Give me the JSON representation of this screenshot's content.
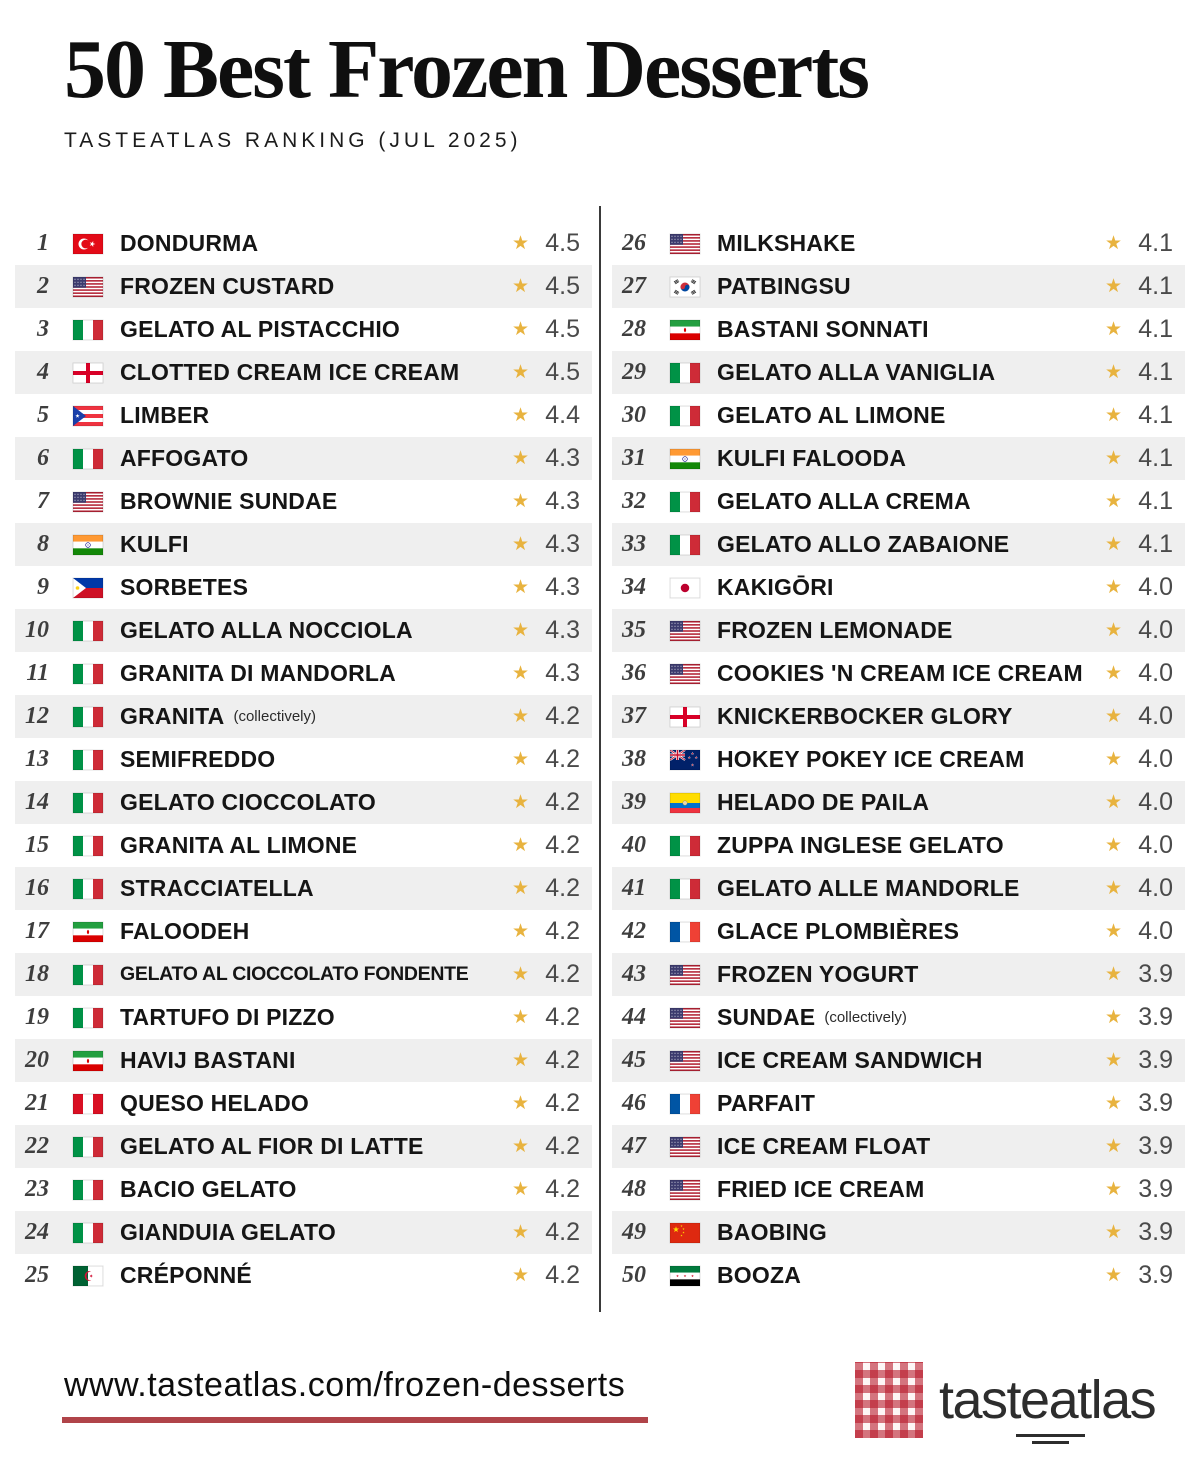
{
  "header": {
    "title": "50 Best Frozen Desserts",
    "subtitle": "TASTEATLAS RANKING (JUL 2025)"
  },
  "icons": {
    "star": "★"
  },
  "colors": {
    "star_gold": "#E8B33F",
    "alt_row": "#EFEFEF",
    "underline_red": "#B04449",
    "divider": "#3A3A3A"
  },
  "ranking": {
    "left": [
      {
        "rank": "1",
        "country": "tr",
        "country_name": "Turkey",
        "name": "DONDURMA",
        "rating": "4.5"
      },
      {
        "rank": "2",
        "country": "us",
        "country_name": "United States",
        "name": "FROZEN CUSTARD",
        "rating": "4.5"
      },
      {
        "rank": "3",
        "country": "it",
        "country_name": "Italy",
        "name": "GELATO AL PISTACCHIO",
        "rating": "4.5"
      },
      {
        "rank": "4",
        "country": "gb-eng",
        "country_name": "England",
        "name": "CLOTTED CREAM ICE CREAM",
        "rating": "4.5"
      },
      {
        "rank": "5",
        "country": "pr",
        "country_name": "Puerto Rico",
        "name": "LIMBER",
        "rating": "4.4"
      },
      {
        "rank": "6",
        "country": "it",
        "country_name": "Italy",
        "name": "AFFOGATO",
        "rating": "4.3"
      },
      {
        "rank": "7",
        "country": "us",
        "country_name": "United States",
        "name": "BROWNIE SUNDAE",
        "rating": "4.3"
      },
      {
        "rank": "8",
        "country": "in",
        "country_name": "India",
        "name": "KULFI",
        "rating": "4.3"
      },
      {
        "rank": "9",
        "country": "ph",
        "country_name": "Philippines",
        "name": "SORBETES",
        "rating": "4.3"
      },
      {
        "rank": "10",
        "country": "it",
        "country_name": "Italy",
        "name": "GELATO ALLA NOCCIOLA",
        "rating": "4.3"
      },
      {
        "rank": "11",
        "country": "it",
        "country_name": "Italy",
        "name": "GRANITA DI MANDORLA",
        "rating": "4.3"
      },
      {
        "rank": "12",
        "country": "it",
        "country_name": "Italy",
        "name": "GRANITA",
        "note": "(collectively)",
        "rating": "4.2"
      },
      {
        "rank": "13",
        "country": "it",
        "country_name": "Italy",
        "name": "SEMIFREDDO",
        "rating": "4.2"
      },
      {
        "rank": "14",
        "country": "it",
        "country_name": "Italy",
        "name": "GELATO CIOCCOLATO",
        "rating": "4.2"
      },
      {
        "rank": "15",
        "country": "it",
        "country_name": "Italy",
        "name": "GRANITA AL LIMONE",
        "rating": "4.2"
      },
      {
        "rank": "16",
        "country": "it",
        "country_name": "Italy",
        "name": "STRACCIATELLA",
        "rating": "4.2"
      },
      {
        "rank": "17",
        "country": "ir",
        "country_name": "Iran",
        "name": "FALOODEH",
        "rating": "4.2"
      },
      {
        "rank": "18",
        "country": "it",
        "country_name": "Italy",
        "name": "GELATO AL CIOCCOLATO FONDENTE",
        "rating": "4.2"
      },
      {
        "rank": "19",
        "country": "it",
        "country_name": "Italy",
        "name": "TARTUFO DI PIZZO",
        "rating": "4.2"
      },
      {
        "rank": "20",
        "country": "ir",
        "country_name": "Iran",
        "name": "HAVIJ BASTANI",
        "rating": "4.2"
      },
      {
        "rank": "21",
        "country": "pe",
        "country_name": "Peru",
        "name": "QUESO HELADO",
        "rating": "4.2"
      },
      {
        "rank": "22",
        "country": "it",
        "country_name": "Italy",
        "name": "GELATO AL FIOR DI LATTE",
        "rating": "4.2"
      },
      {
        "rank": "23",
        "country": "it",
        "country_name": "Italy",
        "name": "BACIO GELATO",
        "rating": "4.2"
      },
      {
        "rank": "24",
        "country": "it",
        "country_name": "Italy",
        "name": "GIANDUIA GELATO",
        "rating": "4.2"
      },
      {
        "rank": "25",
        "country": "dz",
        "country_name": "Algeria",
        "name": "CRÉPONNÉ",
        "rating": "4.2"
      }
    ],
    "right": [
      {
        "rank": "26",
        "country": "us",
        "country_name": "United States",
        "name": "MILKSHAKE",
        "rating": "4.1"
      },
      {
        "rank": "27",
        "country": "kr",
        "country_name": "South Korea",
        "name": "PATBINGSU",
        "rating": "4.1"
      },
      {
        "rank": "28",
        "country": "ir",
        "country_name": "Iran",
        "name": "BASTANI SONNATI",
        "rating": "4.1"
      },
      {
        "rank": "29",
        "country": "it",
        "country_name": "Italy",
        "name": "GELATO ALLA VANIGLIA",
        "rating": "4.1"
      },
      {
        "rank": "30",
        "country": "it",
        "country_name": "Italy",
        "name": "GELATO AL LIMONE",
        "rating": "4.1"
      },
      {
        "rank": "31",
        "country": "in",
        "country_name": "India",
        "name": "KULFI FALOODA",
        "rating": "4.1"
      },
      {
        "rank": "32",
        "country": "it",
        "country_name": "Italy",
        "name": "GELATO ALLA CREMA",
        "rating": "4.1"
      },
      {
        "rank": "33",
        "country": "it",
        "country_name": "Italy",
        "name": "GELATO ALLO ZABAIONE",
        "rating": "4.1"
      },
      {
        "rank": "34",
        "country": "jp",
        "country_name": "Japan",
        "name": "KAKIGŌRI",
        "rating": "4.0"
      },
      {
        "rank": "35",
        "country": "us",
        "country_name": "United States",
        "name": "FROZEN LEMONADE",
        "rating": "4.0"
      },
      {
        "rank": "36",
        "country": "us",
        "country_name": "United States",
        "name": "COOKIES 'N CREAM ICE CREAM",
        "rating": "4.0"
      },
      {
        "rank": "37",
        "country": "gb-eng",
        "country_name": "England",
        "name": "KNICKERBOCKER GLORY",
        "rating": "4.0"
      },
      {
        "rank": "38",
        "country": "nz",
        "country_name": "New Zealand",
        "name": "HOKEY POKEY ICE CREAM",
        "rating": "4.0"
      },
      {
        "rank": "39",
        "country": "ec",
        "country_name": "Ecuador",
        "name": "HELADO DE PAILA",
        "rating": "4.0"
      },
      {
        "rank": "40",
        "country": "it",
        "country_name": "Italy",
        "name": "ZUPPA INGLESE GELATO",
        "rating": "4.0"
      },
      {
        "rank": "41",
        "country": "it",
        "country_name": "Italy",
        "name": "GELATO ALLE MANDORLE",
        "rating": "4.0"
      },
      {
        "rank": "42",
        "country": "fr",
        "country_name": "France",
        "name": "GLACE PLOMBIÈRES",
        "rating": "4.0"
      },
      {
        "rank": "43",
        "country": "us",
        "country_name": "United States",
        "name": "FROZEN YOGURT",
        "rating": "3.9"
      },
      {
        "rank": "44",
        "country": "us",
        "country_name": "United States",
        "name": "SUNDAE",
        "note": "(collectively)",
        "rating": "3.9"
      },
      {
        "rank": "45",
        "country": "us",
        "country_name": "United States",
        "name": "ICE CREAM SANDWICH",
        "rating": "3.9"
      },
      {
        "rank": "46",
        "country": "fr",
        "country_name": "France",
        "name": "PARFAIT",
        "rating": "3.9"
      },
      {
        "rank": "47",
        "country": "us",
        "country_name": "United States",
        "name": "ICE CREAM FLOAT",
        "rating": "3.9"
      },
      {
        "rank": "48",
        "country": "us",
        "country_name": "United States",
        "name": "FRIED ICE CREAM",
        "rating": "3.9"
      },
      {
        "rank": "49",
        "country": "cn",
        "country_name": "China",
        "name": "BAOBING",
        "rating": "3.9"
      },
      {
        "rank": "50",
        "country": "sy",
        "country_name": "Syria",
        "name": "BOOZA",
        "rating": "3.9"
      }
    ]
  },
  "footer": {
    "url": "www.tasteatlas.com/frozen-desserts",
    "logo": {
      "part1": "tast",
      "part2": "ea",
      "part3": "tlas"
    }
  }
}
